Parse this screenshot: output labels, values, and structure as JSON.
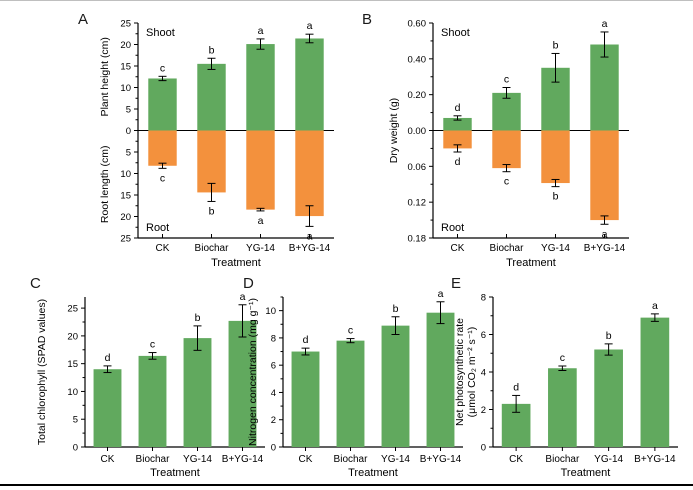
{
  "figure": {
    "background": "#ffffff",
    "top_rule_color": "#bfbfbf",
    "bottom_rule_color": "#000000",
    "categories": [
      "CK",
      "Biochar",
      "YG-14",
      "B+YG-14"
    ],
    "colors": {
      "shoot_bar": "#61a95e",
      "root_bar": "#f3913d",
      "axis": "#000000",
      "text": "#000000"
    }
  },
  "chart_data": [
    {
      "id": "A",
      "panel_label": "A",
      "type": "mirror-bar",
      "categories": [
        "CK",
        "Biochar",
        "YG-14",
        "B+YG-14"
      ],
      "xlabel": "Treatment",
      "top": {
        "section_label": "Shoot",
        "ylabel": "Plant height (cm)",
        "color": "#61a95e",
        "ylim": [
          0,
          25
        ],
        "ticks": [
          0,
          5,
          10,
          15,
          20,
          25
        ],
        "tick_labels": [
          "0",
          "5",
          "10",
          "15",
          "20",
          "25"
        ],
        "values": [
          12.1,
          15.5,
          20.1,
          21.4
        ],
        "errors": [
          0.5,
          1.3,
          1.2,
          1.0
        ],
        "letters": [
          "c",
          "b",
          "a",
          "a"
        ]
      },
      "bottom": {
        "section_label": "Root",
        "ylabel": "Root length (cm)",
        "color": "#f3913d",
        "ylim": [
          0,
          25
        ],
        "ticks": [
          5,
          10,
          15,
          20,
          25
        ],
        "tick_labels": [
          "5",
          "10",
          "15",
          "20",
          "25"
        ],
        "values": [
          8.2,
          14.4,
          18.4,
          19.9
        ],
        "errors": [
          0.6,
          2.1,
          0.3,
          2.4
        ],
        "letters": [
          "c",
          "b",
          "a",
          "a"
        ]
      }
    },
    {
      "id": "B",
      "panel_label": "B",
      "type": "mirror-bar",
      "categories": [
        "CK",
        "Biochar",
        "YG-14",
        "B+YG-14"
      ],
      "xlabel": "Treatment",
      "ylabel_center": "Dry weight (g)",
      "top": {
        "section_label": "Shoot",
        "color": "#61a95e",
        "ylim": [
          0,
          0.6
        ],
        "ticks": [
          0,
          0.2,
          0.4,
          0.6
        ],
        "tick_labels": [
          "0.00",
          "0.20",
          "0.40",
          "0.60"
        ],
        "values": [
          0.07,
          0.21,
          0.35,
          0.48
        ],
        "errors": [
          0.012,
          0.03,
          0.08,
          0.07
        ],
        "letters": [
          "d",
          "c",
          "b",
          "a"
        ]
      },
      "bottom": {
        "section_label": "Root",
        "color": "#f3913d",
        "ylim": [
          0,
          0.18
        ],
        "ticks": [
          0.06,
          0.12,
          0.18
        ],
        "tick_labels": [
          "0.06",
          "0.12",
          "0.18"
        ],
        "values": [
          0.03,
          0.063,
          0.088,
          0.15
        ],
        "errors": [
          0.006,
          0.006,
          0.006,
          0.007
        ],
        "letters": [
          "d",
          "c",
          "b",
          "a"
        ]
      }
    },
    {
      "id": "C",
      "panel_label": "C",
      "type": "bar",
      "categories": [
        "CK",
        "Biochar",
        "YG-14",
        "B+YG-14"
      ],
      "xlabel": "Treatment",
      "ylabel": "Total chlorophyll (SPAD values)",
      "color": "#61a95e",
      "ylim": [
        0,
        27
      ],
      "ticks": [
        0,
        5,
        10,
        15,
        20,
        25
      ],
      "tick_labels": [
        "0",
        "5",
        "10",
        "15",
        "20",
        "25"
      ],
      "values": [
        14.0,
        16.4,
        19.6,
        22.7
      ],
      "errors": [
        0.6,
        0.6,
        2.2,
        2.9
      ],
      "letters": [
        "d",
        "c",
        "b",
        "a"
      ]
    },
    {
      "id": "D",
      "panel_label": "D",
      "type": "bar",
      "categories": [
        "CK",
        "Biochar",
        "YG-14",
        "B+YG-14"
      ],
      "xlabel": "Treatment",
      "ylabel": "Nitrogen concentration (mg g⁻¹)",
      "color": "#61a95e",
      "ylim": [
        0,
        11
      ],
      "ticks": [
        0,
        2,
        4,
        6,
        8,
        10
      ],
      "tick_labels": [
        "0",
        "2",
        "4",
        "6",
        "8",
        "10"
      ],
      "values": [
        7.0,
        7.8,
        8.9,
        9.85
      ],
      "errors": [
        0.25,
        0.15,
        0.65,
        0.8
      ],
      "letters": [
        "d",
        "c",
        "b",
        "a"
      ]
    },
    {
      "id": "E",
      "panel_label": "E",
      "type": "bar",
      "categories": [
        "CK",
        "Biochar",
        "YG-14",
        "B+YG-14"
      ],
      "xlabel": "Treatment",
      "ylabel": [
        "Net photosynthetic rate",
        "(μmol CO₂ m⁻² s⁻¹)"
      ],
      "color": "#61a95e",
      "ylim": [
        0,
        8
      ],
      "ticks": [
        0,
        2,
        4,
        6,
        8
      ],
      "tick_labels": [
        "0",
        "2",
        "4",
        "6",
        "8"
      ],
      "values": [
        2.3,
        4.2,
        5.2,
        6.9
      ],
      "errors": [
        0.45,
        0.12,
        0.3,
        0.2
      ],
      "letters": [
        "d",
        "c",
        "b",
        "a"
      ]
    }
  ]
}
